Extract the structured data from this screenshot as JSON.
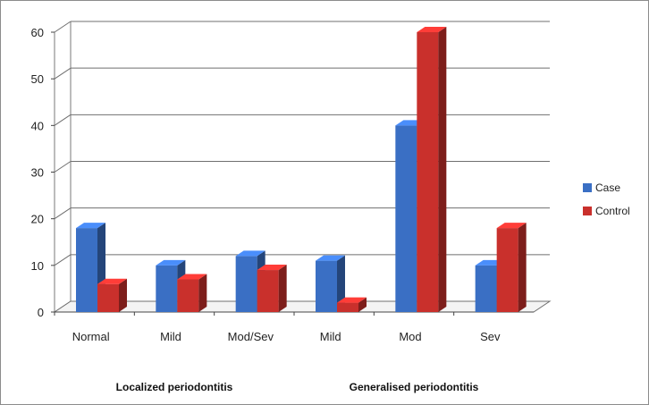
{
  "chart_data": {
    "type": "bar",
    "title": "",
    "xlabel": "",
    "ylabel": "",
    "ylim": [
      0,
      60
    ],
    "yticks": [
      0,
      10,
      20,
      30,
      40,
      50,
      60
    ],
    "categories": [
      "Normal",
      "Mild",
      "Mod/Sev",
      "Mild",
      "Mod",
      "Sev"
    ],
    "groups": [
      {
        "label": "Localized periodontitis",
        "categories": [
          "Normal",
          "Mild",
          "Mod/Sev"
        ]
      },
      {
        "label": "Generalised periodontitis",
        "categories": [
          "Mild",
          "Mod",
          "Sev"
        ]
      }
    ],
    "series": [
      {
        "name": "Case",
        "color": "#3a6fc4",
        "values": [
          18,
          10,
          12,
          11,
          40,
          10
        ]
      },
      {
        "name": "Control",
        "color": "#c9302c",
        "values": [
          6,
          7,
          9,
          2,
          60,
          18
        ]
      }
    ],
    "grid": true,
    "legend": "right",
    "style": "3d-clustered-column"
  }
}
